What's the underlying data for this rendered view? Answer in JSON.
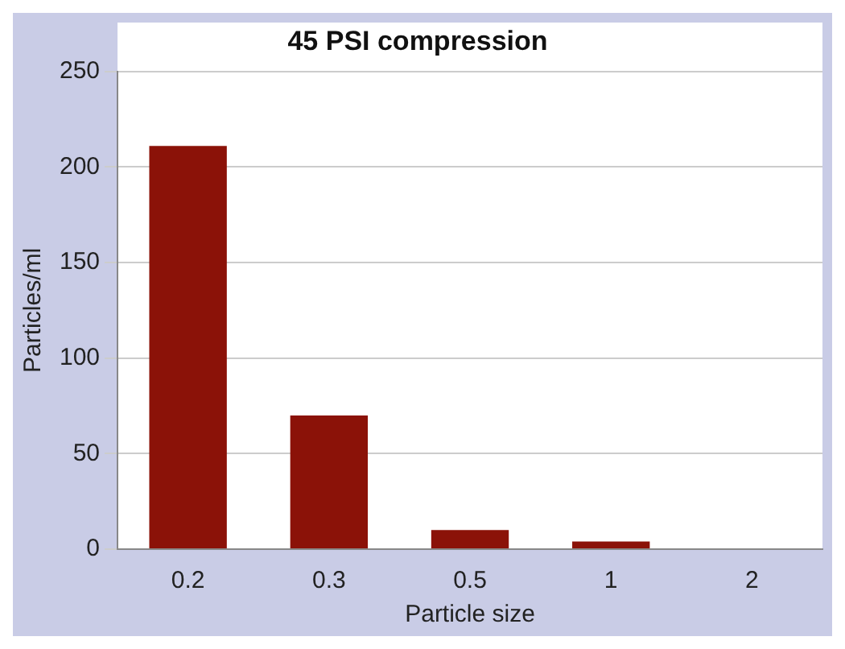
{
  "chart_data": {
    "type": "bar",
    "title": "45 PSI compression",
    "xlabel": "Particle size",
    "ylabel": "Particles/ml",
    "categories": [
      "0.2",
      "0.3",
      "0.5",
      "1",
      "2"
    ],
    "values": [
      211,
      70,
      10,
      4,
      0
    ],
    "color": "#8b1208",
    "ylim": [
      0,
      250
    ],
    "yticks": [
      0,
      50,
      100,
      150,
      200,
      250
    ],
    "grid": "y",
    "legend": false
  }
}
